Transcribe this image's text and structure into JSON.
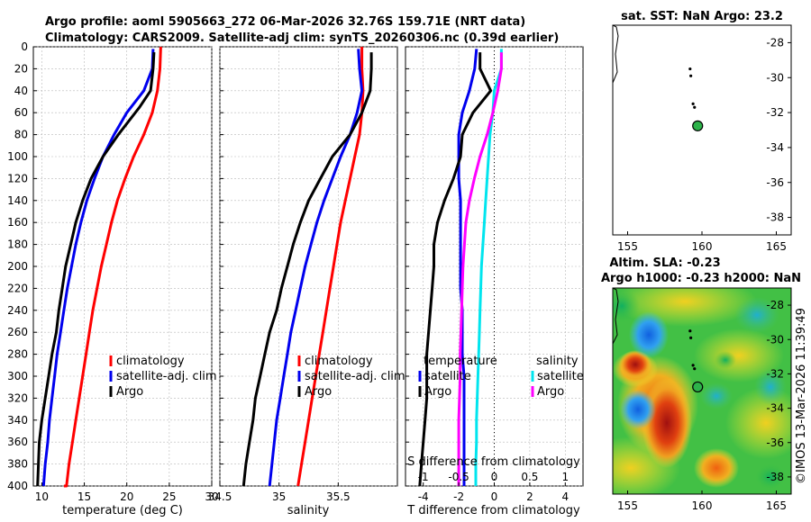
{
  "figure": {
    "title_line1": "Argo profile: aoml 5905663_272 06-Mar-2026 32.76S 159.71E (NRT data)",
    "title_line2": "Climatology: CARS2009. Satellite-adj clim: synTS_20260306.nc (0.39d earlier)",
    "credit": "©IMOS 13-Mar-2026 11:39:49"
  },
  "colors": {
    "climatology": "#ff0000",
    "satellite": "#0000ee",
    "argo": "#000000",
    "salinity_sat": "#00e5ee",
    "salinity_argo": "#ff00ff",
    "grid": "#b8b8b8",
    "position_marker": "#2db34a"
  },
  "chart_data": [
    {
      "id": "temperature",
      "type": "line",
      "xlabel": "temperature (deg C)",
      "ylabel": "",
      "xlim": [
        9,
        30
      ],
      "ylim": [
        0,
        400
      ],
      "y_reversed": true,
      "xticks": [
        10,
        15,
        20,
        25,
        30
      ],
      "xtick_labels": [
        "10",
        "15",
        "20",
        "25",
        "30"
      ],
      "yticks": [
        0,
        20,
        40,
        60,
        80,
        100,
        120,
        140,
        160,
        180,
        200,
        220,
        240,
        260,
        280,
        300,
        320,
        340,
        360,
        380,
        400
      ],
      "ytick_labels": [
        "0",
        "20",
        "40",
        "60",
        "80",
        "100",
        "120",
        "140",
        "160",
        "180",
        "200",
        "220",
        "240",
        "260",
        "280",
        "300",
        "320",
        "340",
        "360",
        "380",
        "400"
      ],
      "legend": [
        "climatology",
        "satellite-adj. clim",
        "Argo"
      ],
      "series": [
        {
          "name": "climatology",
          "color_key": "climatology",
          "x": [
            24.0,
            23.9,
            23.6,
            23.0,
            22.0,
            20.8,
            19.8,
            18.9,
            18.2,
            17.6,
            17.0,
            16.5,
            16.0,
            15.6,
            15.2,
            14.8,
            14.4,
            14.0,
            13.6,
            13.2,
            12.9,
            12.6
          ],
          "y": [
            0,
            20,
            40,
            60,
            80,
            100,
            120,
            140,
            160,
            180,
            200,
            220,
            240,
            260,
            280,
            300,
            320,
            340,
            360,
            380,
            400,
            400
          ]
        },
        {
          "name": "satellite-adj. clim",
          "color_key": "satellite",
          "x": [
            23.1,
            23.0,
            22.0,
            20.0,
            18.5,
            17.2,
            16.2,
            15.3,
            14.6,
            14.0,
            13.5,
            13.0,
            12.6,
            12.2,
            11.8,
            11.5,
            11.2,
            10.9,
            10.7,
            10.4,
            10.2
          ],
          "y": [
            2,
            20,
            40,
            60,
            80,
            100,
            120,
            140,
            160,
            180,
            200,
            220,
            240,
            260,
            280,
            300,
            320,
            340,
            360,
            380,
            400
          ]
        },
        {
          "name": "Argo",
          "color_key": "argo",
          "x": [
            23.2,
            23.1,
            22.8,
            21.5,
            20.5,
            19.0,
            17.2,
            15.8,
            14.8,
            14.0,
            13.4,
            12.8,
            12.4,
            12.0,
            11.7,
            11.2,
            10.8,
            10.4,
            10.0,
            9.7,
            9.5
          ],
          "y": [
            5,
            20,
            40,
            55,
            65,
            80,
            100,
            120,
            140,
            160,
            180,
            200,
            220,
            240,
            260,
            280,
            300,
            320,
            340,
            360,
            400
          ]
        }
      ]
    },
    {
      "id": "salinity",
      "type": "line",
      "xlabel": "salinity",
      "ylabel": "",
      "xlim": [
        34.5,
        36.0
      ],
      "ylim": [
        0,
        400
      ],
      "y_reversed": true,
      "xticks": [
        34.5,
        35,
        35.5
      ],
      "xtick_labels": [
        "34.5",
        "35",
        "35.5"
      ],
      "legend": [
        "climatology",
        "satellite-adj. clim",
        "Argo"
      ],
      "series": [
        {
          "name": "climatology",
          "color_key": "climatology",
          "x": [
            35.7,
            35.7,
            35.71,
            35.7,
            35.68,
            35.64,
            35.6,
            35.56,
            35.52,
            35.49,
            35.46,
            35.43,
            35.4,
            35.37,
            35.34,
            35.31,
            35.28,
            35.25,
            35.22,
            35.19,
            35.16
          ],
          "y": [
            0,
            20,
            40,
            60,
            80,
            100,
            120,
            140,
            160,
            180,
            200,
            220,
            240,
            260,
            280,
            300,
            320,
            340,
            360,
            380,
            400
          ]
        },
        {
          "name": "satellite-adj. clim",
          "color_key": "satellite",
          "x": [
            35.67,
            35.68,
            35.7,
            35.66,
            35.6,
            35.52,
            35.45,
            35.38,
            35.32,
            35.27,
            35.22,
            35.18,
            35.14,
            35.1,
            35.07,
            35.04,
            35.01,
            34.98,
            34.96,
            34.94,
            34.92
          ],
          "y": [
            2,
            20,
            40,
            60,
            80,
            100,
            120,
            140,
            160,
            180,
            200,
            220,
            240,
            260,
            280,
            300,
            320,
            340,
            360,
            380,
            400
          ]
        },
        {
          "name": "Argo",
          "color_key": "argo",
          "x": [
            35.78,
            35.78,
            35.77,
            35.7,
            35.6,
            35.45,
            35.35,
            35.25,
            35.18,
            35.12,
            35.07,
            35.02,
            34.98,
            34.92,
            34.88,
            34.84,
            34.8,
            34.78,
            34.75,
            34.72,
            34.7
          ],
          "y": [
            5,
            20,
            40,
            60,
            80,
            100,
            120,
            140,
            160,
            180,
            200,
            220,
            240,
            260,
            280,
            300,
            320,
            340,
            360,
            380,
            400
          ]
        }
      ]
    },
    {
      "id": "difference",
      "type": "line",
      "xlabel": "T difference from climatology",
      "top_xlabel": "S difference from climatology",
      "xlim": [
        -5,
        5
      ],
      "ylim": [
        0,
        400
      ],
      "y_reversed": true,
      "xticks": [
        -4,
        -2,
        0,
        2,
        4
      ],
      "xtick_labels": [
        "-4",
        "-2",
        "0",
        "2",
        "4"
      ],
      "top_xticks": [
        -1,
        -0.5,
        0,
        0.5,
        1
      ],
      "top_xtick_labels": [
        "-1",
        "-0.5",
        "0",
        "0.5",
        "1"
      ],
      "legend_left_title": "temperature",
      "legend_left": [
        "satellite",
        "Argo"
      ],
      "legend_right_title": "salinity",
      "legend_right": [
        "satellite",
        "Argo"
      ],
      "series": [
        {
          "name": "T satellite",
          "color_key": "satellite",
          "x": [
            -1.0,
            -1.1,
            -1.4,
            -1.8,
            -2.0,
            -2.0,
            -2.0,
            -1.9,
            -1.9,
            -1.9,
            -1.9,
            -1.9,
            -1.8,
            -1.8,
            -1.8,
            -1.7,
            -1.7,
            -1.7,
            -1.7,
            -1.7,
            -1.7
          ],
          "y": [
            2,
            20,
            40,
            60,
            80,
            100,
            120,
            140,
            160,
            180,
            200,
            220,
            240,
            260,
            280,
            300,
            320,
            340,
            360,
            380,
            400
          ]
        },
        {
          "name": "T Argo",
          "color_key": "argo",
          "x": [
            -0.8,
            -0.8,
            -0.2,
            -1.2,
            -1.8,
            -1.9,
            -2.3,
            -2.8,
            -3.2,
            -3.4,
            -3.4,
            -3.5,
            -3.6,
            -3.7,
            -3.8,
            -3.8,
            -3.8,
            -3.9,
            -4.0,
            -4.1,
            -4.2
          ],
          "y": [
            5,
            20,
            40,
            60,
            80,
            100,
            120,
            140,
            160,
            180,
            200,
            220,
            240,
            260,
            280,
            300,
            320,
            340,
            360,
            380,
            400
          ]
        },
        {
          "name": "S satellite",
          "color_key": "salinity_sat",
          "x": [
            0.1,
            0.1,
            0.0,
            -0.02,
            -0.06,
            -0.08,
            -0.1,
            -0.12,
            -0.14,
            -0.16,
            -0.18,
            -0.19,
            -0.2,
            -0.21,
            -0.22,
            -0.23,
            -0.24,
            -0.25,
            -0.25,
            -0.26,
            -0.26
          ],
          "y": [
            2,
            20,
            40,
            60,
            80,
            100,
            120,
            140,
            160,
            180,
            200,
            220,
            240,
            260,
            280,
            300,
            320,
            340,
            360,
            380,
            400
          ]
        },
        {
          "name": "S Argo",
          "color_key": "salinity_argo",
          "x": [
            0.1,
            0.1,
            0.05,
            -0.02,
            -0.1,
            -0.2,
            -0.28,
            -0.35,
            -0.4,
            -0.42,
            -0.44,
            -0.45,
            -0.46,
            -0.47,
            -0.48,
            -0.48,
            -0.49,
            -0.5,
            -0.5,
            -0.5,
            -0.5
          ],
          "y": [
            5,
            20,
            40,
            60,
            80,
            100,
            120,
            140,
            160,
            180,
            200,
            220,
            240,
            260,
            280,
            300,
            320,
            340,
            360,
            380,
            400
          ]
        }
      ]
    },
    {
      "id": "sst_map",
      "type": "scatter",
      "title": "sat. SST: NaN Argo: 23.2",
      "xlim": [
        154,
        166
      ],
      "ylim": [
        -39,
        -27
      ],
      "xticks": [
        155,
        160,
        165
      ],
      "xtick_labels": [
        "155",
        "160",
        "165"
      ],
      "yticks": [
        -28,
        -30,
        -32,
        -34,
        -36,
        -38
      ],
      "ytick_labels": [
        "-28",
        "-30",
        "-32",
        "-34",
        "-36",
        "-38"
      ],
      "track_points": [
        [
          159.2,
          -29.5
        ],
        [
          159.25,
          -29.9
        ],
        [
          159.4,
          -31.5
        ],
        [
          159.5,
          -31.7
        ]
      ],
      "profile_position": [
        159.71,
        -32.76
      ]
    },
    {
      "id": "sla_map",
      "type": "heatmap",
      "title_line1": "Altim. SLA: -0.23",
      "title_line2": "Argo h1000: -0.23 h2000: NaN",
      "xlim": [
        154,
        166
      ],
      "ylim": [
        -39,
        -27
      ],
      "xticks": [
        155,
        160,
        165
      ],
      "xtick_labels": [
        "155",
        "160",
        "165"
      ],
      "yticks": [
        -28,
        -30,
        -32,
        -34,
        -36,
        -38
      ],
      "ytick_labels": [
        "-28",
        "-30",
        "-32",
        "-34",
        "-36",
        "-38"
      ],
      "track_points": [
        [
          159.2,
          -29.5
        ],
        [
          159.25,
          -29.9
        ],
        [
          159.4,
          -31.5
        ],
        [
          159.5,
          -31.7
        ]
      ],
      "profile_position": [
        159.71,
        -32.76
      ]
    }
  ]
}
